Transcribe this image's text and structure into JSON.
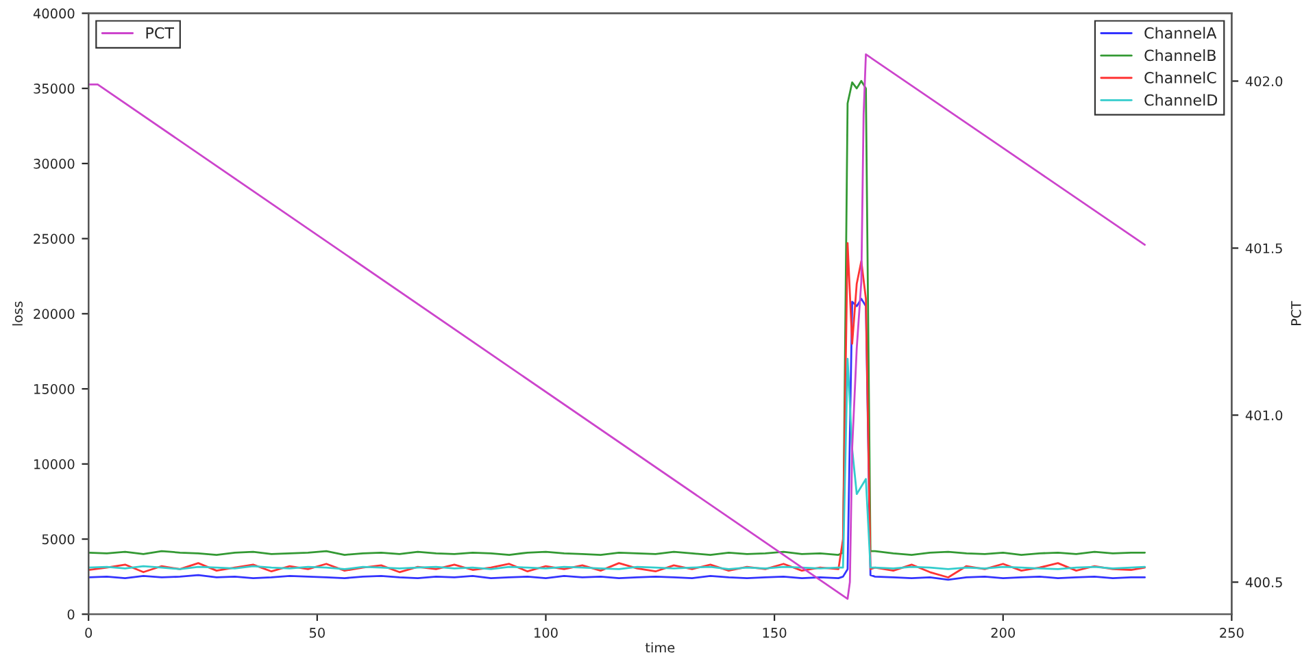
{
  "chart_data": {
    "type": "line",
    "xlabel": "time",
    "ylabel": "loss",
    "y2label": "PCT",
    "x": [
      0,
      4,
      8,
      12,
      16,
      20,
      24,
      28,
      32,
      36,
      40,
      44,
      48,
      52,
      56,
      60,
      64,
      68,
      72,
      76,
      80,
      84,
      88,
      92,
      96,
      100,
      104,
      108,
      112,
      116,
      120,
      124,
      128,
      132,
      136,
      140,
      144,
      148,
      152,
      156,
      160,
      164,
      165,
      166,
      167,
      168,
      169,
      170,
      171,
      172,
      176,
      180,
      184,
      188,
      192,
      196,
      200,
      204,
      208,
      212,
      216,
      220,
      224,
      228,
      231
    ],
    "series": [
      {
        "name": "ChannelA",
        "color": "#3333ff",
        "values": [
          2450,
          2500,
          2400,
          2550,
          2450,
          2500,
          2600,
          2450,
          2500,
          2400,
          2450,
          2550,
          2500,
          2450,
          2400,
          2500,
          2550,
          2450,
          2400,
          2500,
          2450,
          2550,
          2400,
          2450,
          2500,
          2400,
          2550,
          2450,
          2500,
          2400,
          2450,
          2500,
          2450,
          2400,
          2550,
          2450,
          2400,
          2450,
          2500,
          2400,
          2450,
          2400,
          2500,
          3000,
          20800,
          20500,
          21000,
          20500,
          2600,
          2500,
          2450,
          2400,
          2450,
          2300,
          2450,
          2500,
          2400,
          2450,
          2500,
          2400,
          2450,
          2500,
          2400,
          2450,
          2450
        ]
      },
      {
        "name": "ChannelB",
        "color": "#339933",
        "values": [
          4100,
          4050,
          4150,
          4000,
          4200,
          4100,
          4050,
          3950,
          4100,
          4150,
          4000,
          4050,
          4100,
          4200,
          3950,
          4050,
          4100,
          4000,
          4150,
          4050,
          4000,
          4100,
          4050,
          3950,
          4100,
          4150,
          4050,
          4000,
          3950,
          4100,
          4050,
          4000,
          4150,
          4050,
          3950,
          4100,
          4000,
          4050,
          4150,
          4000,
          4050,
          3950,
          4100,
          34000,
          35400,
          35000,
          35500,
          35000,
          4200,
          4200,
          4050,
          3950,
          4100,
          4150,
          4050,
          4000,
          4100,
          3950,
          4050,
          4100,
          4000,
          4150,
          4050,
          4100,
          4100
        ]
      },
      {
        "name": "ChannelC",
        "color": "#ff3333",
        "values": [
          2950,
          3100,
          3300,
          2800,
          3200,
          3000,
          3400,
          2900,
          3100,
          3300,
          2850,
          3200,
          3000,
          3350,
          2900,
          3100,
          3250,
          2800,
          3150,
          3000,
          3300,
          2950,
          3100,
          3350,
          2850,
          3200,
          3000,
          3250,
          2900,
          3400,
          3050,
          2850,
          3250,
          3000,
          3300,
          2900,
          3150,
          3000,
          3350,
          2900,
          3100,
          3000,
          5000,
          24700,
          18000,
          22000,
          23500,
          21000,
          3000,
          3100,
          2900,
          3300,
          2800,
          2450,
          3200,
          3000,
          3350,
          2900,
          3100,
          3400,
          2900,
          3200,
          3000,
          2950,
          3100
        ]
      },
      {
        "name": "ChannelD",
        "color": "#33cccc",
        "values": [
          3100,
          3150,
          3050,
          3200,
          3100,
          3000,
          3150,
          3100,
          3050,
          3200,
          3100,
          3050,
          3150,
          3100,
          3000,
          3150,
          3100,
          3050,
          3100,
          3150,
          3050,
          3100,
          3000,
          3150,
          3100,
          3050,
          3150,
          3100,
          3050,
          3000,
          3150,
          3100,
          3050,
          3100,
          3150,
          3000,
          3100,
          3050,
          3150,
          3100,
          3050,
          3100,
          3100,
          17000,
          11000,
          8000,
          8500,
          9000,
          3100,
          3100,
          3050,
          3150,
          3100,
          3000,
          3100,
          3050,
          3150,
          3100,
          3050,
          3000,
          3100,
          3150,
          3050,
          3100,
          3150
        ]
      },
      {
        "name": "PCT",
        "color": "#cc44cc",
        "axis": "y2",
        "x": [
          0,
          2,
          166,
          166.5,
          167,
          168,
          169,
          169.5,
          170,
          231
        ],
        "values": [
          401.99,
          401.99,
          400.45,
          400.5,
          400.9,
          401.2,
          401.4,
          401.9,
          402.08,
          401.51
        ]
      }
    ],
    "xlim": [
      0,
      250
    ],
    "xticks": [
      0,
      50,
      100,
      150,
      200,
      250
    ],
    "ylim": [
      0,
      40000
    ],
    "yticks": [
      0,
      5000,
      10000,
      15000,
      20000,
      25000,
      30000,
      35000,
      40000
    ],
    "y2lim": [
      400.404,
      402.203
    ],
    "y2ticks": [
      {
        "value": 400.5,
        "label": "400.5"
      },
      {
        "value": 401.0,
        "label": "401.0"
      },
      {
        "value": 401.5,
        "label": "401.5"
      },
      {
        "value": 402.0,
        "label": "402.0"
      }
    ],
    "legend": [
      "top right",
      "top left"
    ],
    "grid": false
  }
}
